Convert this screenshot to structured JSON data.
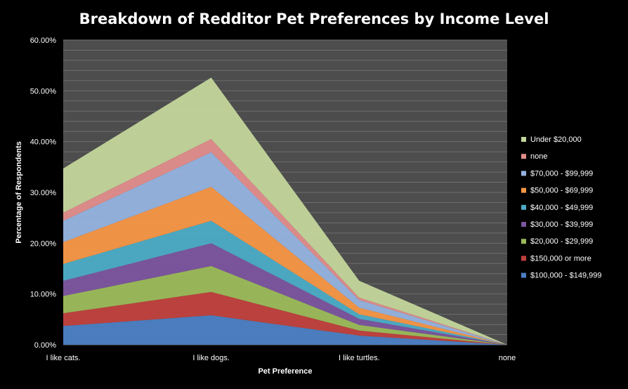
{
  "chart_data": {
    "type": "area",
    "stacked": true,
    "title": "Breakdown of Redditor Pet Preferences by Income Level",
    "xlabel": "Pet Preference",
    "ylabel": "Percentage of  Respondents",
    "categories": [
      "I like cats.",
      "I like dogs.",
      "I like turtles.",
      "none"
    ],
    "ylim": [
      0,
      0.6
    ],
    "yticks": [
      "0.00%",
      "10.00%",
      "20.00%",
      "30.00%",
      "40.00%",
      "50.00%",
      "60.00%"
    ],
    "grid": true,
    "legend_position": "right",
    "series": [
      {
        "name": "$100,000 - $149,999",
        "color": "#4a7ec4",
        "values": [
          0.037,
          0.058,
          0.018,
          0.0
        ]
      },
      {
        "name": "$150,000 or more",
        "color": "#c0403c",
        "values": [
          0.025,
          0.046,
          0.01,
          0.0
        ]
      },
      {
        "name": "$20,000 - $29,999",
        "color": "#9bbb59",
        "values": [
          0.034,
          0.051,
          0.011,
          0.0
        ]
      },
      {
        "name": "$30,000 - $39,999",
        "color": "#7b549e",
        "values": [
          0.03,
          0.045,
          0.012,
          0.0
        ]
      },
      {
        "name": "$40,000 - $49,999",
        "color": "#4bacc6",
        "values": [
          0.033,
          0.044,
          0.009,
          0.0
        ]
      },
      {
        "name": "$50,000 - $69,999",
        "color": "#f79646",
        "values": [
          0.043,
          0.067,
          0.013,
          0.0
        ]
      },
      {
        "name": "$70,000 - $99,999",
        "color": "#95b3e0",
        "values": [
          0.042,
          0.068,
          0.015,
          0.0
        ]
      },
      {
        "name": "none",
        "color": "#e18d8b",
        "values": [
          0.016,
          0.026,
          0.005,
          0.0
        ]
      },
      {
        "name": "Under $20,000",
        "color": "#c3d69b",
        "values": [
          0.087,
          0.121,
          0.033,
          0.0
        ]
      }
    ]
  }
}
